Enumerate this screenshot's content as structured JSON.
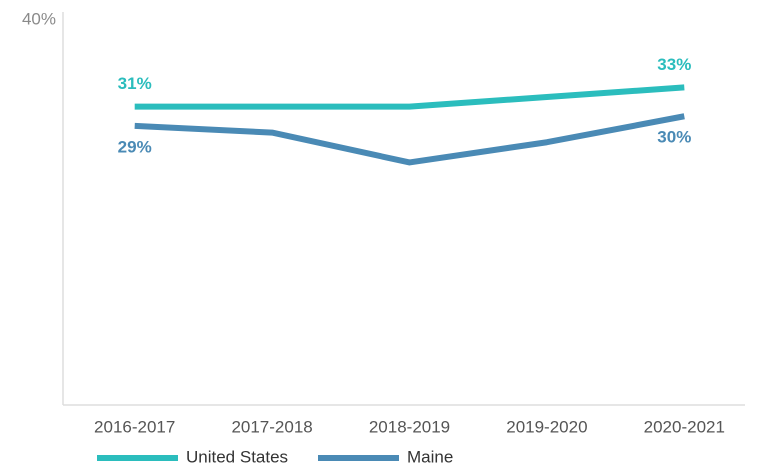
{
  "chart_data": {
    "type": "line",
    "categories": [
      "2016-2017",
      "2017-2018",
      "2018-2019",
      "2019-2020",
      "2020-2021"
    ],
    "series": [
      {
        "name": "United States",
        "color": "#2bbdbd",
        "values": [
          31,
          31,
          31,
          32,
          33
        ],
        "value_labels": [
          "31%",
          null,
          null,
          null,
          "33%"
        ]
      },
      {
        "name": "Maine",
        "color": "#4a8ab5",
        "values": [
          29,
          28.3,
          25.2,
          27.3,
          30
        ],
        "value_labels": [
          "29%",
          null,
          null,
          null,
          "30%"
        ]
      }
    ],
    "ylim": [
      0,
      40
    ],
    "yticks": [
      {
        "value": 40,
        "label": "40%"
      }
    ],
    "grid": false,
    "legend": "bottom"
  }
}
